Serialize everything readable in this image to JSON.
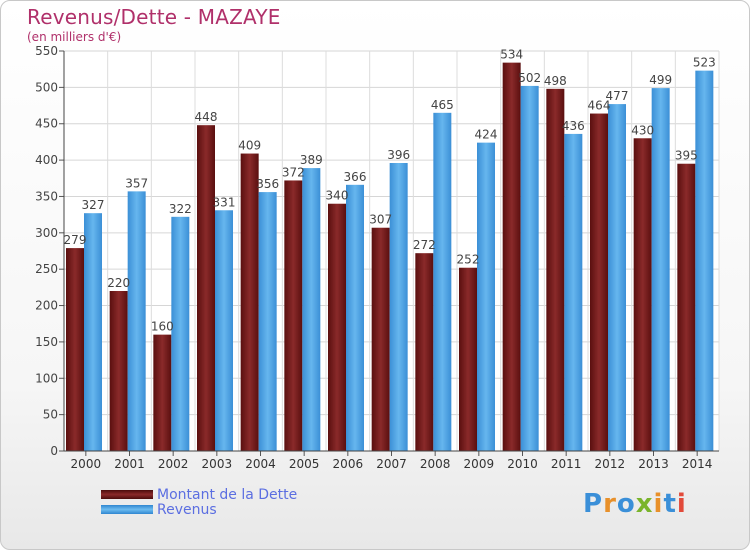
{
  "header": {
    "title": "Revenus/Dette - MAZAYE",
    "subtitle": "(en milliers d'€)"
  },
  "chart_data": {
    "type": "bar",
    "categories": [
      "2000",
      "2001",
      "2002",
      "2003",
      "2004",
      "2005",
      "2006",
      "2007",
      "2008",
      "2009",
      "2010",
      "2011",
      "2012",
      "2013",
      "2014"
    ],
    "series": [
      {
        "name": "Montant de la Dette",
        "color": "#7a1c1c",
        "values": [
          279,
          220,
          160,
          448,
          409,
          372,
          340,
          307,
          272,
          252,
          534,
          498,
          464,
          430,
          395
        ]
      },
      {
        "name": "Revenus",
        "color": "#4ea3e3",
        "values": [
          327,
          357,
          322,
          331,
          356,
          389,
          366,
          396,
          465,
          424,
          502,
          436,
          477,
          499,
          523
        ]
      }
    ],
    "ylim": [
      0,
      550
    ],
    "yticks": [
      0,
      50,
      100,
      150,
      200,
      250,
      300,
      350,
      400,
      450,
      500,
      550
    ],
    "grid": true,
    "legend_position": "bottom-left"
  },
  "legend": {
    "items": [
      {
        "label": "Montant de la Dette",
        "color": "#7a1c1c"
      },
      {
        "label": "Revenus",
        "color": "#4ea3e3"
      }
    ]
  },
  "logo": {
    "letters": [
      "P",
      "r",
      "o",
      "x",
      "i",
      "t",
      "i"
    ],
    "colors": [
      "#3a8fd8",
      "#e8902a",
      "#3a8fd8",
      "#7ab42c",
      "#e8902a",
      "#3a8fd8",
      "#e24a3a"
    ]
  }
}
